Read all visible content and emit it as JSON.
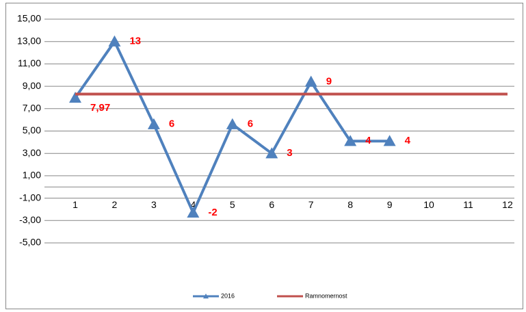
{
  "chart_data": {
    "type": "line",
    "categories": [
      "1",
      "2",
      "3",
      "4",
      "5",
      "6",
      "7",
      "8",
      "9",
      "10",
      "11",
      "12"
    ],
    "series": [
      {
        "name": "2016",
        "color": "#4f81bd",
        "marker": "triangle",
        "values": [
          7.97,
          13,
          5.6,
          -2.3,
          5.6,
          3,
          9.4,
          4.1,
          4.1,
          null,
          null,
          null
        ],
        "value_labels": [
          "7,97",
          "13",
          "6",
          "-2",
          "6",
          "3",
          "9",
          "4",
          "4",
          null,
          null,
          null
        ]
      },
      {
        "name": "Ramnomernost",
        "color": "#c0504d",
        "values": [
          8.3,
          8.3,
          8.3,
          8.3,
          8.3,
          8.3,
          8.3,
          8.3,
          8.3,
          8.3,
          8.3,
          8.3
        ]
      }
    ],
    "ylim": [
      -5,
      15
    ],
    "yticks": [
      {
        "value": 15,
        "label": "15,00"
      },
      {
        "value": 13,
        "label": "13,00"
      },
      {
        "value": 11,
        "label": "11,00"
      },
      {
        "value": 9,
        "label": "9,00"
      },
      {
        "value": 7,
        "label": "7,00"
      },
      {
        "value": 5,
        "label": "5,00"
      },
      {
        "value": 3,
        "label": "3,00"
      },
      {
        "value": 1,
        "label": "1,00"
      },
      {
        "value": -1,
        "label": "-1,00"
      },
      {
        "value": -3,
        "label": "-3,00"
      },
      {
        "value": -5,
        "label": "-5,00"
      }
    ],
    "grid": true
  }
}
